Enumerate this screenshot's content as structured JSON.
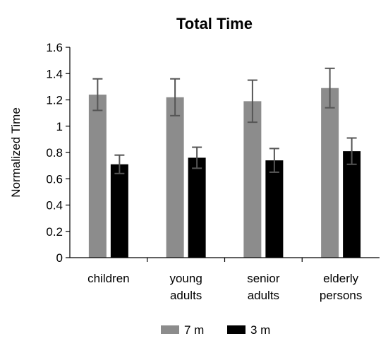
{
  "chart_data": {
    "type": "bar",
    "title": "Total Time",
    "xlabel": "",
    "ylabel": "Normalized Time",
    "ylim": [
      0,
      1.6
    ],
    "yticks": [
      0,
      0.2,
      0.4,
      0.6,
      0.8,
      1,
      1.2,
      1.4,
      1.6
    ],
    "ytick_labels": [
      "0",
      "0.2",
      "0.4",
      "0.6",
      "0.8",
      "1",
      "1.2",
      "1.4",
      "1.6"
    ],
    "grid": false,
    "legend_position": "bottom",
    "categories": [
      [
        "children"
      ],
      [
        "young",
        "adults"
      ],
      [
        "senior",
        "adults"
      ],
      [
        "elderly",
        "persons"
      ]
    ],
    "series": [
      {
        "name": "7 m",
        "color": "#8c8c8c",
        "values": [
          1.24,
          1.22,
          1.19,
          1.29
        ],
        "error": [
          0.12,
          0.14,
          0.16,
          0.15
        ]
      },
      {
        "name": "3 m",
        "color": "#000000",
        "values": [
          0.71,
          0.76,
          0.74,
          0.81
        ],
        "error": [
          0.07,
          0.08,
          0.09,
          0.1
        ]
      }
    ],
    "error_color": "#555555"
  }
}
